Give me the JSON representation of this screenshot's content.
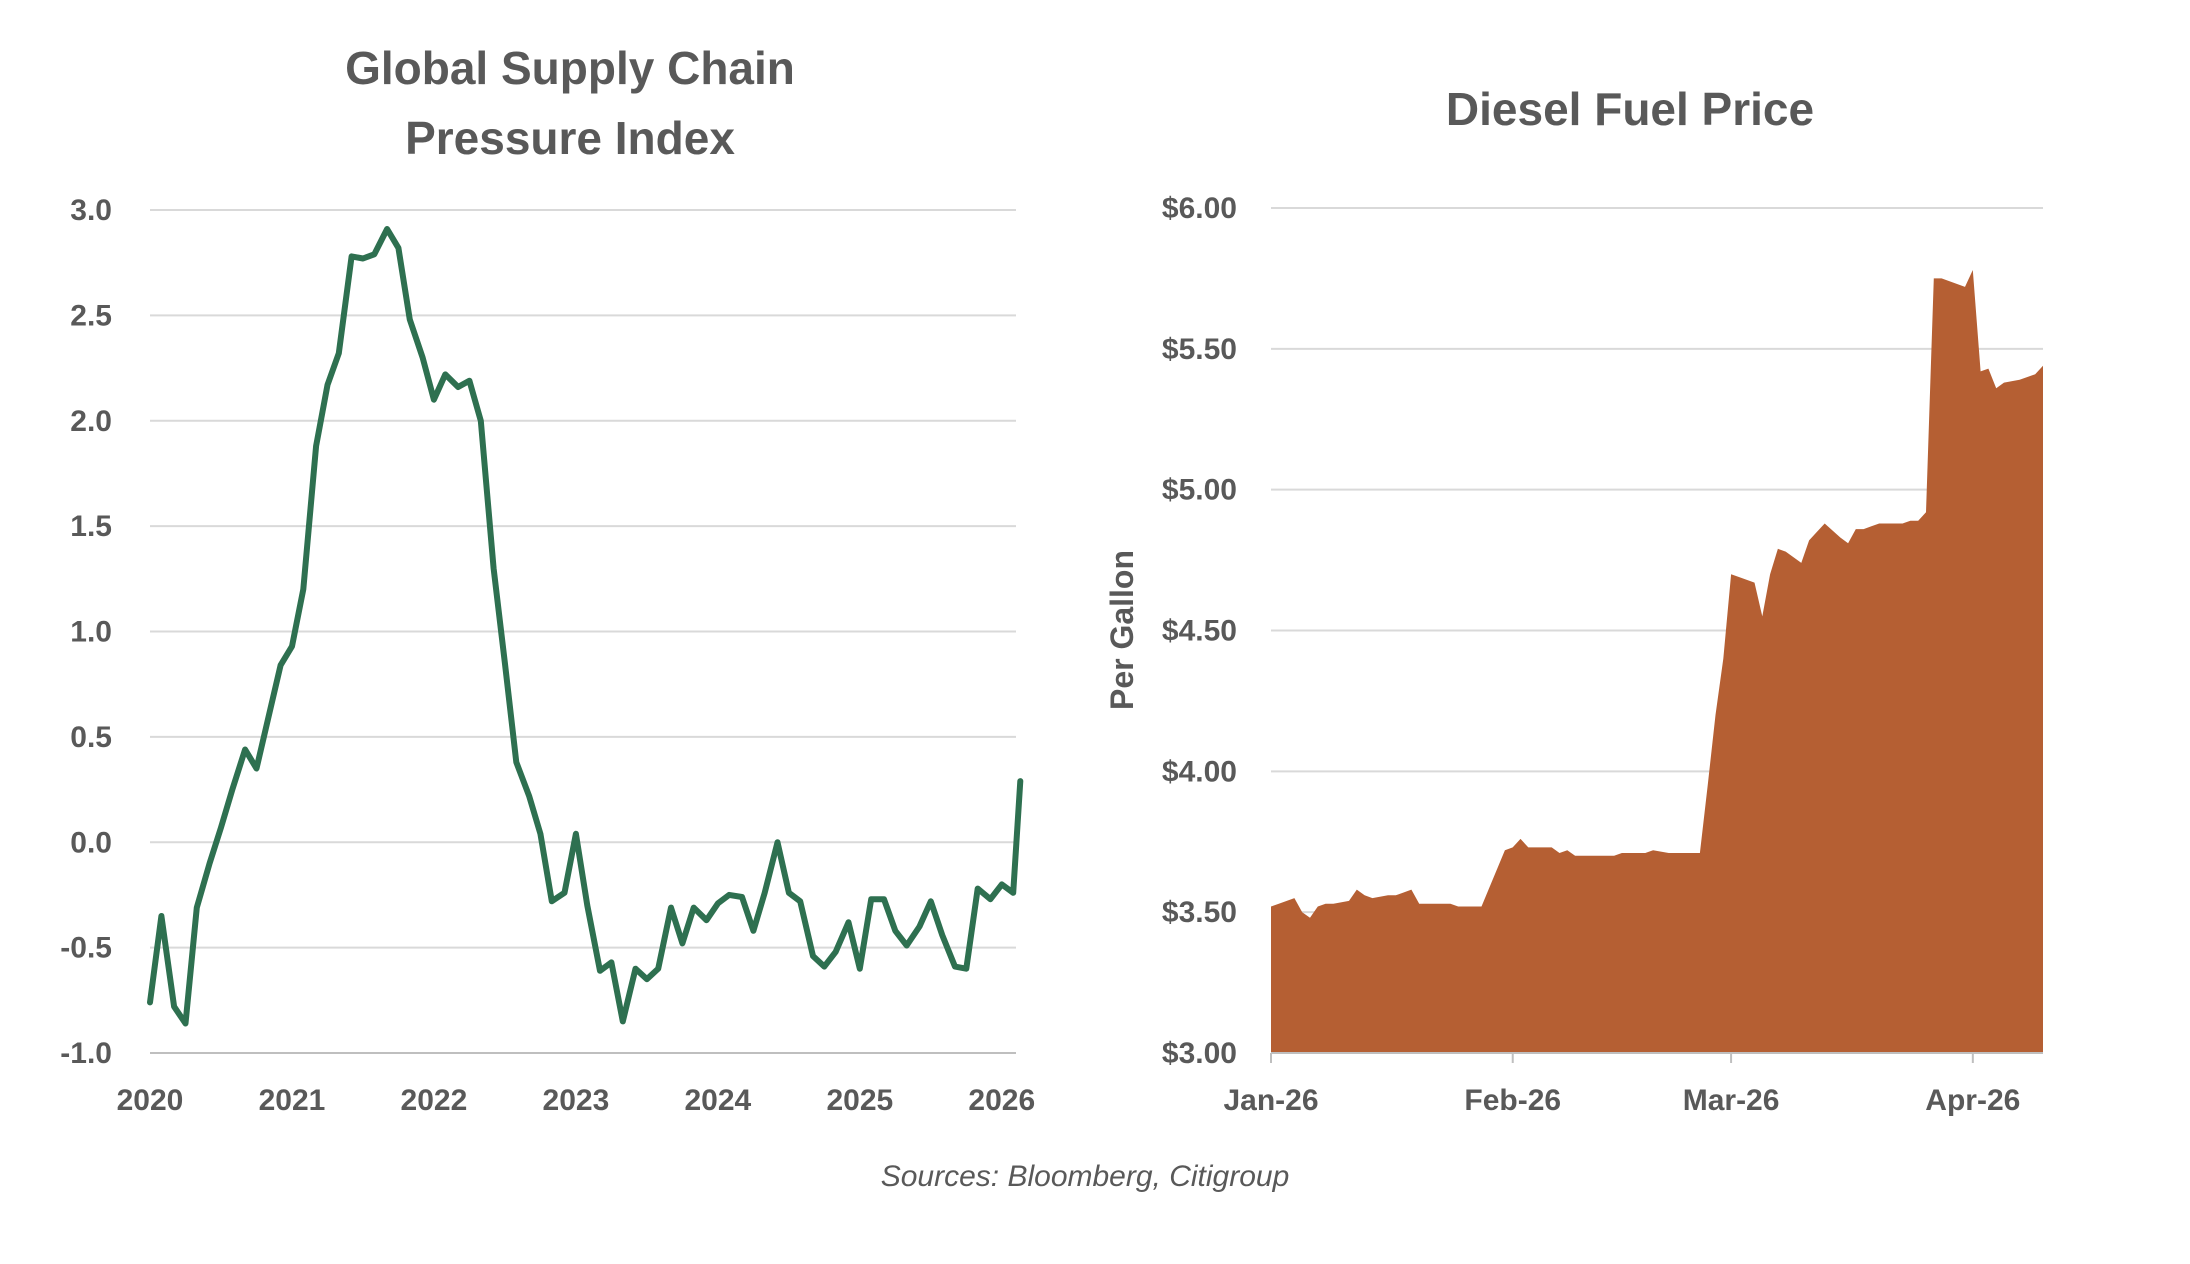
{
  "source_note": "Sources: Bloomberg, Citigroup",
  "colors": {
    "gscpi_line": "#2e7050",
    "diesel_fill": "#b55f33",
    "text": "#595959",
    "grid": "#d9d9d9"
  },
  "chart_data": [
    {
      "type": "line",
      "title_lines": [
        "Global Supply Chain",
        "Pressure Index"
      ],
      "xlabel": "",
      "ylabel": "",
      "ylim": [
        -1.0,
        3.0
      ],
      "y_ticks": [
        "3.0",
        "2.5",
        "2.0",
        "1.5",
        "1.0",
        "0.5",
        "0.0",
        "-0.5",
        "-1.0"
      ],
      "y_tick_values": [
        3.0,
        2.5,
        2.0,
        1.5,
        1.0,
        0.5,
        0.0,
        -0.5,
        -1.0
      ],
      "x_ticks": [
        "2020",
        "2021",
        "2022",
        "2023",
        "2024",
        "2025",
        "2026"
      ],
      "x_tick_values": [
        2020,
        2021,
        2022,
        2023,
        2024,
        2025,
        2026
      ],
      "xlim": [
        2020,
        2026.1
      ],
      "grid": true,
      "series": [
        {
          "values": [
            [
              2020.0,
              -0.76
            ],
            [
              2020.08,
              -0.35
            ],
            [
              2020.17,
              -0.78
            ],
            [
              2020.25,
              -0.86
            ],
            [
              2020.33,
              -0.31
            ],
            [
              2020.42,
              -0.1
            ],
            [
              2020.5,
              0.07
            ],
            [
              2020.58,
              0.25
            ],
            [
              2020.67,
              0.44
            ],
            [
              2020.75,
              0.35
            ],
            [
              2020.83,
              0.58
            ],
            [
              2020.92,
              0.84
            ],
            [
              2021.0,
              0.93
            ],
            [
              2021.08,
              1.2
            ],
            [
              2021.17,
              1.88
            ],
            [
              2021.25,
              2.17
            ],
            [
              2021.33,
              2.32
            ],
            [
              2021.42,
              2.78
            ],
            [
              2021.5,
              2.77
            ],
            [
              2021.58,
              2.79
            ],
            [
              2021.67,
              2.91
            ],
            [
              2021.75,
              2.82
            ],
            [
              2021.83,
              2.48
            ],
            [
              2021.92,
              2.3
            ],
            [
              2022.0,
              2.1
            ],
            [
              2022.08,
              2.22
            ],
            [
              2022.17,
              2.16
            ],
            [
              2022.25,
              2.19
            ],
            [
              2022.33,
              2.0
            ],
            [
              2022.42,
              1.3
            ],
            [
              2022.5,
              0.85
            ],
            [
              2022.58,
              0.38
            ],
            [
              2022.67,
              0.22
            ],
            [
              2022.75,
              0.04
            ],
            [
              2022.83,
              -0.28
            ],
            [
              2022.92,
              -0.24
            ],
            [
              2023.0,
              0.04
            ],
            [
              2023.08,
              -0.3
            ],
            [
              2023.17,
              -0.61
            ],
            [
              2023.25,
              -0.57
            ],
            [
              2023.33,
              -0.85
            ],
            [
              2023.42,
              -0.6
            ],
            [
              2023.5,
              -0.65
            ],
            [
              2023.58,
              -0.6
            ],
            [
              2023.67,
              -0.31
            ],
            [
              2023.75,
              -0.48
            ],
            [
              2023.83,
              -0.31
            ],
            [
              2023.92,
              -0.37
            ],
            [
              2024.0,
              -0.29
            ],
            [
              2024.08,
              -0.25
            ],
            [
              2024.17,
              -0.26
            ],
            [
              2024.25,
              -0.42
            ],
            [
              2024.33,
              -0.24
            ],
            [
              2024.42,
              0.0
            ],
            [
              2024.5,
              -0.24
            ],
            [
              2024.58,
              -0.28
            ],
            [
              2024.67,
              -0.54
            ],
            [
              2024.75,
              -0.59
            ],
            [
              2024.83,
              -0.52
            ],
            [
              2024.92,
              -0.38
            ],
            [
              2025.0,
              -0.6
            ],
            [
              2025.08,
              -0.27
            ],
            [
              2025.17,
              -0.27
            ],
            [
              2025.25,
              -0.42
            ],
            [
              2025.33,
              -0.49
            ],
            [
              2025.42,
              -0.4
            ],
            [
              2025.5,
              -0.28
            ],
            [
              2025.58,
              -0.44
            ],
            [
              2025.67,
              -0.59
            ],
            [
              2025.75,
              -0.6
            ],
            [
              2025.83,
              -0.22
            ],
            [
              2025.92,
              -0.27
            ],
            [
              2026.0,
              -0.2
            ],
            [
              2026.08,
              -0.24
            ],
            [
              2026.13,
              0.29
            ]
          ]
        }
      ]
    },
    {
      "type": "area",
      "title": "Diesel Fuel Price",
      "xlabel": "",
      "ylabel": "Per Gallon",
      "ylim": [
        3.0,
        6.0
      ],
      "y_ticks": [
        "$6.00",
        "$5.50",
        "$5.00",
        "$4.50",
        "$4.00",
        "$3.50",
        "$3.00"
      ],
      "y_tick_values": [
        6.0,
        5.5,
        5.0,
        4.5,
        4.0,
        3.5,
        3.0
      ],
      "x_ticks": [
        "Jan-26",
        "Feb-26",
        "Mar-26",
        "Apr-26"
      ],
      "x_tick_values": [
        "2026-01-01",
        "2026-02-01",
        "2026-03-01",
        "2026-04-01"
      ],
      "xlim": [
        "2026-01-01",
        "2026-04-10"
      ],
      "grid": true,
      "series": [
        {
          "values": [
            [
              "2026-01-01",
              3.52
            ],
            [
              "2026-01-02",
              3.53
            ],
            [
              "2026-01-04",
              3.55
            ],
            [
              "2026-01-05",
              3.5
            ],
            [
              "2026-01-06",
              3.48
            ],
            [
              "2026-01-07",
              3.52
            ],
            [
              "2026-01-08",
              3.53
            ],
            [
              "2026-01-09",
              3.53
            ],
            [
              "2026-01-11",
              3.54
            ],
            [
              "2026-01-12",
              3.58
            ],
            [
              "2026-01-13",
              3.56
            ],
            [
              "2026-01-14",
              3.55
            ],
            [
              "2026-01-16",
              3.56
            ],
            [
              "2026-01-17",
              3.56
            ],
            [
              "2026-01-18",
              3.57
            ],
            [
              "2026-01-19",
              3.58
            ],
            [
              "2026-01-20",
              3.53
            ],
            [
              "2026-01-21",
              3.53
            ],
            [
              "2026-01-24",
              3.53
            ],
            [
              "2026-01-25",
              3.52
            ],
            [
              "2026-01-28",
              3.52
            ],
            [
              "2026-01-31",
              3.72
            ],
            [
              "2026-02-01",
              3.73
            ],
            [
              "2026-02-02",
              3.76
            ],
            [
              "2026-02-03",
              3.73
            ],
            [
              "2026-02-04",
              3.73
            ],
            [
              "2026-02-06",
              3.73
            ],
            [
              "2026-02-07",
              3.71
            ],
            [
              "2026-02-08",
              3.72
            ],
            [
              "2026-02-09",
              3.7
            ],
            [
              "2026-02-11",
              3.7
            ],
            [
              "2026-02-14",
              3.7
            ],
            [
              "2026-02-15",
              3.71
            ],
            [
              "2026-02-18",
              3.71
            ],
            [
              "2026-02-19",
              3.72
            ],
            [
              "2026-02-21",
              3.71
            ],
            [
              "2026-02-25",
              3.71
            ],
            [
              "2026-02-26",
              3.95
            ],
            [
              "2026-02-27",
              4.2
            ],
            [
              "2026-02-28",
              4.4
            ],
            [
              "2026-03-01",
              4.7
            ],
            [
              "2026-03-02",
              4.69
            ],
            [
              "2026-03-04",
              4.67
            ],
            [
              "2026-03-05",
              4.55
            ],
            [
              "2026-03-06",
              4.7
            ],
            [
              "2026-03-07",
              4.79
            ],
            [
              "2026-03-08",
              4.78
            ],
            [
              "2026-03-10",
              4.74
            ],
            [
              "2026-03-11",
              4.82
            ],
            [
              "2026-03-12",
              4.85
            ],
            [
              "2026-03-13",
              4.88
            ],
            [
              "2026-03-15",
              4.83
            ],
            [
              "2026-03-16",
              4.81
            ],
            [
              "2026-03-17",
              4.86
            ],
            [
              "2026-03-18",
              4.86
            ],
            [
              "2026-03-19",
              4.87
            ],
            [
              "2026-03-20",
              4.88
            ],
            [
              "2026-03-22",
              4.88
            ],
            [
              "2026-03-23",
              4.88
            ],
            [
              "2026-03-24",
              4.89
            ],
            [
              "2026-03-25",
              4.89
            ],
            [
              "2026-03-26",
              4.92
            ],
            [
              "2026-03-27",
              5.75
            ],
            [
              "2026-03-28",
              5.75
            ],
            [
              "2026-03-31",
              5.72
            ],
            [
              "2026-04-01",
              5.78
            ],
            [
              "2026-04-02",
              5.42
            ],
            [
              "2026-04-03",
              5.43
            ],
            [
              "2026-04-04",
              5.36
            ],
            [
              "2026-04-05",
              5.38
            ],
            [
              "2026-04-07",
              5.39
            ],
            [
              "2026-04-08",
              5.4
            ],
            [
              "2026-04-09",
              5.41
            ],
            [
              "2026-04-10",
              5.44
            ]
          ]
        }
      ]
    }
  ]
}
